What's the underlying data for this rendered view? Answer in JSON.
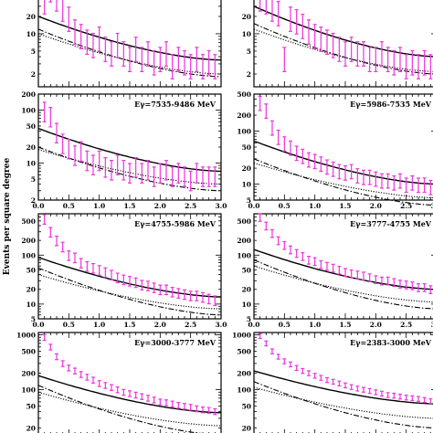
{
  "ylabel": "Events per square degree",
  "colors": {
    "data": "#ee33dd",
    "model": "#000000"
  },
  "chart_data": [
    {
      "type": "line",
      "label": "",
      "yscale": "log",
      "xlim": [
        0,
        3
      ],
      "ylim": [
        1.2,
        80
      ],
      "yticks": [
        2,
        5,
        10,
        20,
        50
      ],
      "xticks": [],
      "col": 0,
      "row": 0,
      "x": [
        0.1,
        0.2,
        0.3,
        0.4,
        0.5,
        0.6,
        0.7,
        0.8,
        0.9,
        1.0,
        1.1,
        1.2,
        1.3,
        1.4,
        1.5,
        1.6,
        1.7,
        1.8,
        1.9,
        2.0,
        2.1,
        2.2,
        2.3,
        2.4,
        2.5,
        2.6,
        2.7,
        2.8,
        2.9
      ],
      "data": [
        40,
        65,
        45,
        30,
        20,
        12,
        10,
        8,
        7,
        9,
        6,
        5,
        7,
        5,
        4,
        6,
        4,
        5,
        3.5,
        4,
        5,
        3,
        4,
        3.5,
        3,
        4,
        3,
        3.5,
        3
      ],
      "err_frac": 0.45,
      "series": [
        {
          "name": "",
          "style": "solid",
          "y0": 20,
          "y1": 3.5
        },
        {
          "name": "",
          "style": "dashdot",
          "y0": 12,
          "y1": 1.8
        },
        {
          "name": "",
          "style": "dotted",
          "y0": 10,
          "y1": 2.0
        }
      ]
    },
    {
      "type": "line",
      "label": "",
      "yscale": "log",
      "xlim": [
        0,
        3
      ],
      "ylim": [
        1.2,
        80
      ],
      "yticks": [
        2,
        5,
        10,
        20,
        50
      ],
      "xticks": [],
      "col": 1,
      "row": 0,
      "x": [
        0.1,
        0.2,
        0.3,
        0.4,
        0.5,
        0.6,
        0.7,
        0.8,
        0.9,
        1.0,
        1.1,
        1.2,
        1.3,
        1.4,
        1.5,
        1.6,
        1.7,
        1.8,
        1.9,
        2.0,
        2.1,
        2.2,
        2.3,
        2.4,
        2.5,
        2.6,
        2.7,
        2.8,
        2.9
      ],
      "data": [
        45,
        40,
        30,
        25,
        4,
        20,
        18,
        15,
        12,
        10,
        9,
        8,
        7,
        6,
        5,
        6,
        5,
        5,
        4,
        4,
        5,
        4,
        3.5,
        4,
        3,
        3.5,
        3,
        3.5,
        3
      ],
      "err_frac": 0.45,
      "series": [
        {
          "name": "",
          "style": "solid",
          "y0": 30,
          "y1": 4
        },
        {
          "name": "",
          "style": "dashdot",
          "y0": 15,
          "y1": 2
        },
        {
          "name": "",
          "style": "dotted",
          "y0": 12,
          "y1": 2.2
        }
      ]
    },
    {
      "type": "line",
      "label": "Eγ=7535-9486 MeV",
      "yscale": "log",
      "xlim": [
        0,
        3
      ],
      "ylim": [
        2,
        200
      ],
      "yticks": [
        2,
        5,
        10,
        20,
        50,
        100,
        200
      ],
      "xticks": [
        0,
        0.5,
        1.0,
        1.5,
        2.0,
        2.5,
        3.0
      ],
      "col": 0,
      "row": 1,
      "x": [
        0.1,
        0.2,
        0.3,
        0.4,
        0.5,
        0.6,
        0.7,
        0.8,
        0.9,
        1.0,
        1.1,
        1.2,
        1.3,
        1.4,
        1.5,
        1.6,
        1.7,
        1.8,
        1.9,
        2.0,
        2.1,
        2.2,
        2.3,
        2.4,
        2.5,
        2.6,
        2.7,
        2.8,
        2.9
      ],
      "data": [
        100,
        80,
        40,
        25,
        20,
        15,
        18,
        12,
        10,
        12,
        9,
        8,
        10,
        8,
        7,
        9,
        7,
        8,
        6,
        7,
        8,
        6,
        7,
        6,
        5,
        7,
        6,
        6,
        6
      ],
      "err_frac": 0.4,
      "series": [
        {
          "name": "",
          "style": "solid",
          "y0": 45,
          "y1": 7
        },
        {
          "name": "",
          "style": "dashdot",
          "y0": 20,
          "y1": 3
        },
        {
          "name": "",
          "style": "dotted",
          "y0": 18,
          "y1": 4
        }
      ]
    },
    {
      "type": "line",
      "label": "Eγ=5986-7535 MeV",
      "yscale": "log",
      "xlim": [
        0,
        3
      ],
      "ylim": [
        5,
        500
      ],
      "yticks": [
        5,
        10,
        20,
        50,
        100,
        200,
        500
      ],
      "xticks": [
        0,
        0.5,
        1.0,
        1.5,
        2.0,
        2.5,
        3.0
      ],
      "col": 1,
      "row": 1,
      "x": [
        0.1,
        0.2,
        0.3,
        0.4,
        0.5,
        0.6,
        0.7,
        0.8,
        0.9,
        1.0,
        1.1,
        1.2,
        1.3,
        1.4,
        1.5,
        1.6,
        1.7,
        1.8,
        1.9,
        2.0,
        2.1,
        2.2,
        2.3,
        2.4,
        2.5,
        2.6,
        2.7,
        2.8,
        2.9
      ],
      "data": [
        350,
        250,
        120,
        80,
        60,
        50,
        40,
        35,
        30,
        28,
        25,
        22,
        20,
        18,
        17,
        18,
        15,
        14,
        14,
        13,
        12,
        12,
        11,
        12,
        10,
        11,
        10,
        10,
        9
      ],
      "err_frac": 0.3,
      "series": [
        {
          "name": "",
          "style": "solid",
          "y0": 65,
          "y1": 10
        },
        {
          "name": "",
          "style": "dashdot",
          "y0": 30,
          "y1": 4
        },
        {
          "name": "",
          "style": "dotted",
          "y0": 25,
          "y1": 5.5
        }
      ]
    },
    {
      "type": "line",
      "label": "Eγ=4755-5986 MeV",
      "yscale": "log",
      "xlim": [
        0,
        3
      ],
      "ylim": [
        5,
        700
      ],
      "yticks": [
        5,
        10,
        20,
        50,
        100,
        200,
        500
      ],
      "xticks": [
        0,
        0.5,
        1.0,
        1.5,
        2.0,
        2.5,
        3.0
      ],
      "col": 0,
      "row": 2,
      "x": [
        0.1,
        0.2,
        0.3,
        0.4,
        0.5,
        0.6,
        0.7,
        0.8,
        0.9,
        1.0,
        1.1,
        1.2,
        1.3,
        1.4,
        1.5,
        1.6,
        1.7,
        1.8,
        1.9,
        2.0,
        2.1,
        2.2,
        2.3,
        2.4,
        2.5,
        2.6,
        2.7,
        2.8,
        2.9
      ],
      "data": [
        550,
        300,
        200,
        150,
        100,
        90,
        70,
        60,
        55,
        50,
        45,
        40,
        35,
        32,
        30,
        28,
        25,
        24,
        22,
        20,
        20,
        18,
        17,
        16,
        15,
        15,
        14,
        13,
        12
      ],
      "err_frac": 0.22,
      "series": [
        {
          "name": "",
          "style": "solid",
          "y0": 90,
          "y1": 14
        },
        {
          "name": "",
          "style": "dashdot",
          "y0": 55,
          "y1": 6
        },
        {
          "name": "",
          "style": "dotted",
          "y0": 40,
          "y1": 8
        }
      ]
    },
    {
      "type": "line",
      "label": "Eγ=3777-4755 MeV",
      "yscale": "log",
      "xlim": [
        0,
        3
      ],
      "ylim": [
        5,
        700
      ],
      "yticks": [
        5,
        10,
        20,
        50,
        100,
        200,
        500
      ],
      "xticks": [
        0,
        0.5,
        1.0,
        1.5,
        2.0,
        2.5,
        3.0
      ],
      "col": 1,
      "row": 2,
      "x": [
        0.1,
        0.2,
        0.3,
        0.4,
        0.5,
        0.6,
        0.7,
        0.8,
        0.9,
        1.0,
        1.1,
        1.2,
        1.3,
        1.4,
        1.5,
        1.6,
        1.7,
        1.8,
        1.9,
        2.0,
        2.1,
        2.2,
        2.3,
        2.4,
        2.5,
        2.6,
        2.7,
        2.8,
        2.9
      ],
      "data": [
        600,
        400,
        280,
        200,
        160,
        130,
        110,
        95,
        80,
        75,
        65,
        60,
        55,
        50,
        45,
        42,
        40,
        38,
        35,
        32,
        30,
        30,
        28,
        26,
        25,
        24,
        22,
        22,
        20
      ],
      "err_frac": 0.18,
      "series": [
        {
          "name": "",
          "style": "solid",
          "y0": 130,
          "y1": 20
        },
        {
          "name": "",
          "style": "dashdot",
          "y0": 80,
          "y1": 8
        },
        {
          "name": "",
          "style": "dotted",
          "y0": 60,
          "y1": 11
        }
      ]
    },
    {
      "type": "line",
      "label": "Eγ=3000-3777 MeV",
      "yscale": "log",
      "xlim": [
        0,
        3
      ],
      "ylim": [
        15,
        1100
      ],
      "yticks": [
        20,
        50,
        100,
        200,
        500,
        1000
      ],
      "xticks": [],
      "col": 0,
      "row": 3,
      "x": [
        0.1,
        0.2,
        0.3,
        0.4,
        0.5,
        0.6,
        0.7,
        0.8,
        0.9,
        1.0,
        1.1,
        1.2,
        1.3,
        1.4,
        1.5,
        1.6,
        1.7,
        1.8,
        1.9,
        2.0,
        2.1,
        2.2,
        2.3,
        2.4,
        2.5,
        2.6,
        2.7,
        2.8,
        2.9
      ],
      "data": [
        900,
        600,
        400,
        300,
        250,
        220,
        190,
        170,
        150,
        130,
        120,
        110,
        100,
        90,
        85,
        80,
        75,
        70,
        65,
        60,
        58,
        55,
        52,
        50,
        48,
        45,
        43,
        42,
        40
      ],
      "err_frac": 0.12,
      "series": [
        {
          "name": "",
          "style": "solid",
          "y0": 180,
          "y1": 38
        },
        {
          "name": "",
          "style": "dashdot",
          "y0": 120,
          "y1": 15
        },
        {
          "name": "",
          "style": "dotted",
          "y0": 90,
          "y1": 22
        }
      ]
    },
    {
      "type": "line",
      "label": "Eγ=2383-3000 MeV",
      "yscale": "log",
      "xlim": [
        0,
        3
      ],
      "ylim": [
        15,
        1100
      ],
      "yticks": [
        20,
        50,
        100,
        200,
        500,
        1000
      ],
      "xticks": [],
      "col": 1,
      "row": 3,
      "x": [
        0.1,
        0.2,
        0.3,
        0.4,
        0.5,
        0.6,
        0.7,
        0.8,
        0.9,
        1.0,
        1.1,
        1.2,
        1.3,
        1.4,
        1.5,
        1.6,
        1.7,
        1.8,
        1.9,
        2.0,
        2.1,
        2.2,
        2.3,
        2.4,
        2.5,
        2.6,
        2.7,
        2.8,
        2.9
      ],
      "data": [
        950,
        700,
        500,
        400,
        330,
        290,
        250,
        220,
        200,
        180,
        165,
        150,
        140,
        130,
        120,
        112,
        105,
        100,
        95,
        90,
        85,
        80,
        78,
        75,
        72,
        70,
        68,
        65,
        62
      ],
      "err_frac": 0.1,
      "series": [
        {
          "name": "",
          "style": "solid",
          "y0": 220,
          "y1": 55
        },
        {
          "name": "",
          "style": "dashdot",
          "y0": 140,
          "y1": 20
        },
        {
          "name": "",
          "style": "dotted",
          "y0": 110,
          "y1": 30
        }
      ]
    }
  ]
}
